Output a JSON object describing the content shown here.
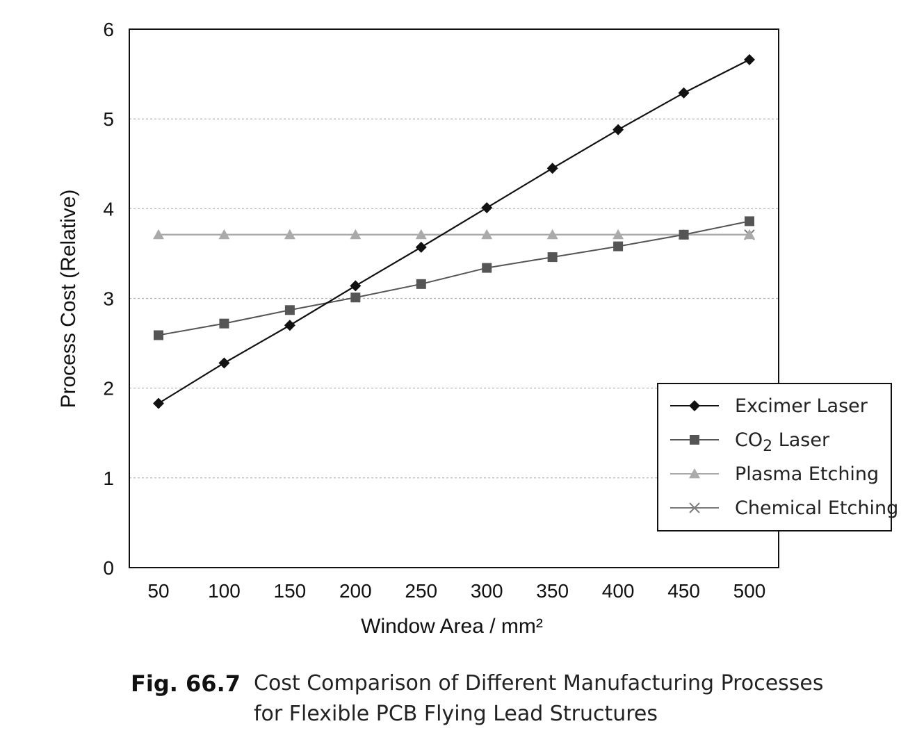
{
  "chart_data": {
    "type": "line",
    "xlabel": "Window Area / mm²",
    "ylabel": "Process Cost (Relative)",
    "x": [
      50,
      100,
      150,
      200,
      250,
      300,
      350,
      400,
      450,
      500
    ],
    "xlim": [
      50,
      500
    ],
    "ylim": [
      0,
      6
    ],
    "yticks": [
      "0",
      "1",
      "2",
      "3",
      "4",
      "5",
      "6"
    ],
    "xticks": [
      "50",
      "100",
      "150",
      "200",
      "250",
      "300",
      "350",
      "400",
      "450",
      "500"
    ],
    "grid": "horizontal dashed",
    "legend_position": "right",
    "series": [
      {
        "name": "Excimer Laser",
        "name_main": "Excimer Laser",
        "name_sub": "",
        "name_rest": "",
        "marker": "diamond",
        "color": "#111111",
        "values": [
          1.83,
          2.28,
          2.7,
          3.14,
          3.57,
          4.01,
          4.45,
          4.88,
          5.29,
          5.66
        ]
      },
      {
        "name": "CO2 Laser",
        "name_main": "CO",
        "name_sub": "2",
        "name_rest": " Laser",
        "marker": "square",
        "color": "#555555",
        "values": [
          2.59,
          2.72,
          2.87,
          3.01,
          3.16,
          3.34,
          3.46,
          3.58,
          3.71,
          3.86
        ]
      },
      {
        "name": "Plasma Etching",
        "name_main": "Plasma Etching",
        "name_sub": "",
        "name_rest": "",
        "marker": "triangle",
        "color": "#aaaaaa",
        "values": [
          3.71,
          3.71,
          3.71,
          3.71,
          3.71,
          3.71,
          3.71,
          3.71,
          3.71,
          3.71
        ]
      },
      {
        "name": "Chemical Etching",
        "name_main": "Chemical Etching",
        "name_sub": "",
        "name_rest": "",
        "marker": "x",
        "color": "#7a7a7a",
        "values": [
          3.71,
          3.71,
          3.71,
          3.71,
          3.71,
          3.71,
          3.71,
          3.71,
          3.71,
          3.71
        ]
      }
    ]
  },
  "caption": {
    "label": "Fig. 66.7",
    "line1": "Cost Comparison of Different Manufacturing Processes",
    "line2": "for Flexible PCB Flying Lead Structures"
  }
}
